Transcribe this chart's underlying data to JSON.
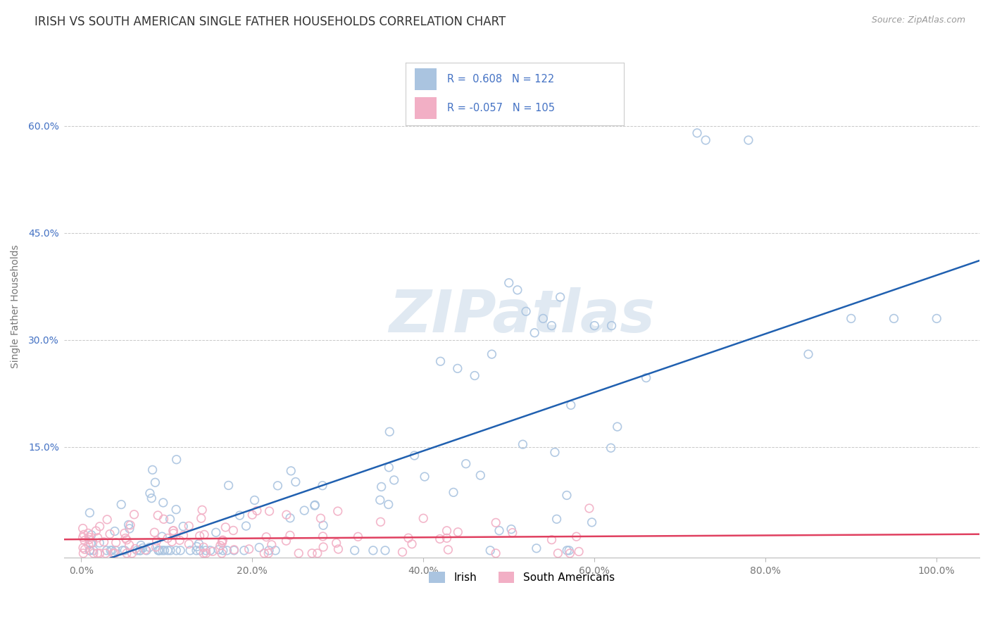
{
  "title": "IRISH VS SOUTH AMERICAN SINGLE FATHER HOUSEHOLDS CORRELATION CHART",
  "source": "Source: ZipAtlas.com",
  "ylabel": "Single Father Households",
  "xlim_min": -0.02,
  "xlim_max": 1.05,
  "ylim_min": -0.005,
  "ylim_max": 0.7,
  "xtick_labels": [
    "0.0%",
    "20.0%",
    "40.0%",
    "60.0%",
    "80.0%",
    "100.0%"
  ],
  "xtick_vals": [
    0.0,
    0.2,
    0.4,
    0.6,
    0.8,
    1.0
  ],
  "ytick_labels": [
    "15.0%",
    "30.0%",
    "45.0%",
    "60.0%"
  ],
  "ytick_vals": [
    0.15,
    0.3,
    0.45,
    0.6
  ],
  "legend_irish_r": " 0.608",
  "legend_irish_n": "122",
  "legend_sa_r": "-0.057",
  "legend_sa_n": "105",
  "irish_color": "#aac4e0",
  "sa_color": "#f2afc5",
  "irish_line_color": "#2060b0",
  "sa_line_color": "#e04060",
  "text_color": "#4472c4",
  "background_color": "#ffffff",
  "grid_color": "#c8c8c8",
  "title_fontsize": 12,
  "label_fontsize": 10,
  "tick_fontsize": 10,
  "watermark": "ZIPatlas",
  "bottom_legend_irish": "Irish",
  "bottom_legend_sa": "South Americans"
}
